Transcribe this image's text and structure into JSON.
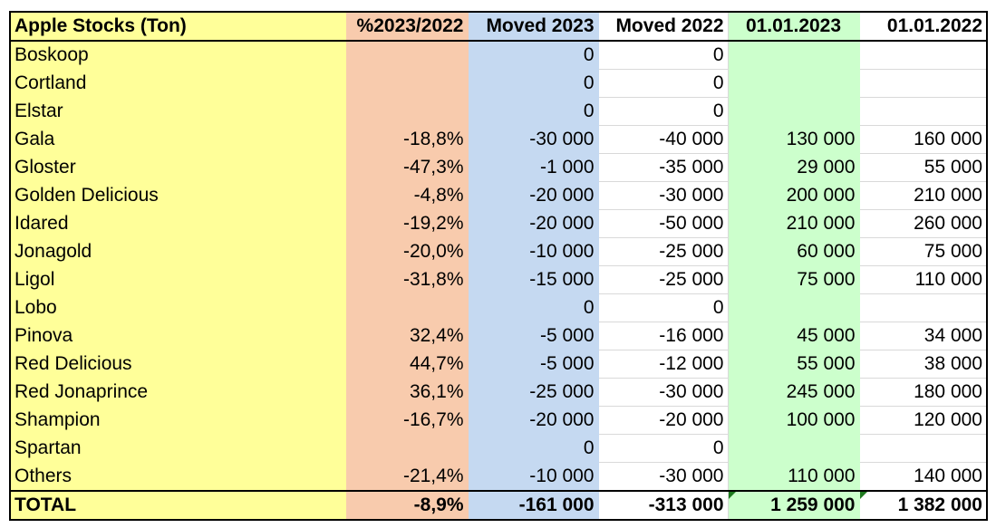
{
  "table": {
    "headers": [
      "Apple Stocks (Ton)",
      "%2023/2022",
      "Moved 2023",
      "Moved 2022",
      "01.01.2023",
      "01.01.2022"
    ],
    "rows": [
      [
        "Boskoop",
        "",
        "0",
        "0",
        "",
        ""
      ],
      [
        "Cortland",
        "",
        "0",
        "0",
        "",
        ""
      ],
      [
        "Elstar",
        "",
        "0",
        "0",
        "",
        ""
      ],
      [
        "Gala",
        "-18,8%",
        "-30 000",
        "-40 000",
        "130 000",
        "160 000"
      ],
      [
        "Gloster",
        "-47,3%",
        "-1 000",
        "-35 000",
        "29 000",
        "55 000"
      ],
      [
        "Golden Delicious",
        "-4,8%",
        "-20 000",
        "-30 000",
        "200 000",
        "210 000"
      ],
      [
        "Idared",
        "-19,2%",
        "-20 000",
        "-50 000",
        "210 000",
        "260 000"
      ],
      [
        "Jonagold",
        "-20,0%",
        "-10 000",
        "-25 000",
        "60 000",
        "75 000"
      ],
      [
        "Ligol",
        "-31,8%",
        "-15 000",
        "-25 000",
        "75 000",
        "110 000"
      ],
      [
        "Lobo",
        "",
        "0",
        "0",
        "",
        ""
      ],
      [
        "Pinova",
        "32,4%",
        "-5 000",
        "-16 000",
        "45 000",
        "34 000"
      ],
      [
        "Red Delicious",
        "44,7%",
        "-5 000",
        "-12 000",
        "55 000",
        "38 000"
      ],
      [
        "Red Jonaprince",
        "36,1%",
        "-25 000",
        "-30 000",
        "245 000",
        "180 000"
      ],
      [
        "Shampion",
        "-16,7%",
        "-20 000",
        "-20 000",
        "100 000",
        "120 000"
      ],
      [
        "Spartan",
        "",
        "0",
        "0",
        "",
        ""
      ],
      [
        "Others",
        "-21,4%",
        "-10 000",
        "-30 000",
        "110 000",
        "140 000"
      ]
    ],
    "total": [
      "TOTAL",
      "-8,9%",
      "-161 000",
      "-313 000",
      "1 259 000",
      "1 382 000"
    ]
  },
  "colors": {
    "col_variety": "#ffff99",
    "col_percent": "#f8cbad",
    "col_moved2023": "#c5d9f1",
    "col_stock2023": "#ccffcc",
    "grid": "#d9d9d9"
  }
}
